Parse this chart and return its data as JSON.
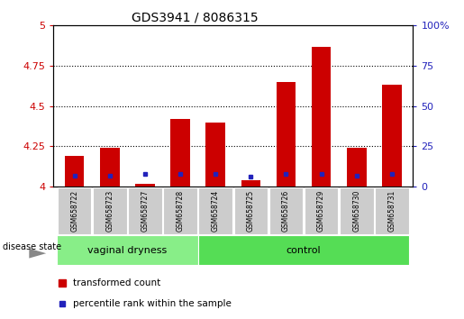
{
  "title": "GDS3941 / 8086315",
  "samples": [
    "GSM658722",
    "GSM658723",
    "GSM658727",
    "GSM658728",
    "GSM658724",
    "GSM658725",
    "GSM658726",
    "GSM658729",
    "GSM658730",
    "GSM658731"
  ],
  "groups": [
    "vaginal dryness",
    "vaginal dryness",
    "vaginal dryness",
    "vaginal dryness",
    "control",
    "control",
    "control",
    "control",
    "control",
    "control"
  ],
  "red_bar_tops": [
    4.19,
    4.24,
    4.02,
    4.42,
    4.4,
    4.04,
    4.65,
    4.87,
    4.24,
    4.63
  ],
  "blue_marker_y": [
    4.07,
    4.07,
    4.08,
    4.08,
    4.08,
    4.06,
    4.08,
    4.08,
    4.07,
    4.08
  ],
  "bar_base": 4.0,
  "ylim_left": [
    4.0,
    5.0
  ],
  "ylim_right": [
    0,
    100
  ],
  "yticks_left": [
    4.0,
    4.25,
    4.5,
    4.75,
    5.0
  ],
  "yticks_right": [
    0,
    25,
    50,
    75,
    100
  ],
  "ytick_labels_left": [
    "4",
    "4.25",
    "4.5",
    "4.75",
    "5"
  ],
  "ytick_labels_right": [
    "0",
    "25",
    "50",
    "75",
    "100%"
  ],
  "bar_color_red": "#cc0000",
  "marker_color_blue": "#2222bb",
  "group_colors": {
    "vaginal dryness": "#88ee88",
    "control": "#55dd55"
  },
  "disease_state_label": "disease state",
  "left_axis_color": "#cc0000",
  "right_axis_color": "#2222bb",
  "bar_width": 0.55,
  "sample_box_color": "#cccccc",
  "grid_linestyle": ":",
  "grid_color": "black",
  "grid_linewidth": 0.8,
  "grid_yticks": [
    4.25,
    4.5,
    4.75
  ]
}
